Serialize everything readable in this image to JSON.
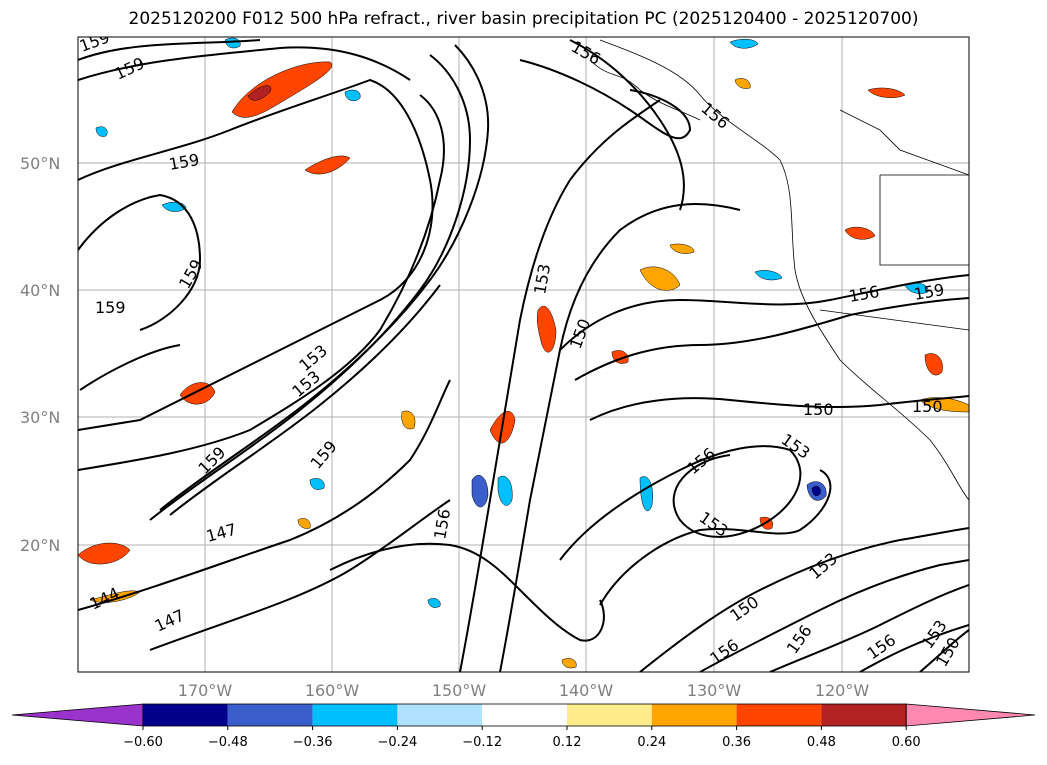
{
  "title": "2025120200 F012 500 hPa refract., river basin precipitation PC (2025120400 - 2025120700)",
  "map": {
    "lat_labels": [
      "50°N",
      "40°N",
      "30°N",
      "20°N"
    ],
    "lon_labels": [
      "170°W",
      "160°W",
      "150°W",
      "140°W",
      "130°W",
      "120°W"
    ],
    "contour_labels": [
      "159",
      "159",
      "159",
      "159",
      "159",
      "153",
      "153",
      "159",
      "159",
      "147",
      "147",
      "144",
      "156",
      "153",
      "150",
      "156",
      "156",
      "156",
      "159",
      "150",
      "150",
      "153",
      "156",
      "153",
      "153",
      "150",
      "156",
      "156",
      "156",
      "153",
      "150"
    ]
  },
  "colorbar": {
    "tick_labels": [
      "−0.60",
      "−0.48",
      "−0.36",
      "−0.24",
      "−0.12",
      "0.12",
      "0.24",
      "0.36",
      "0.48",
      "0.60"
    ],
    "colors": [
      "#9933cc",
      "#00008b",
      "#3a5fcd",
      "#00bfff",
      "#b0e2ff",
      "#ffffff",
      "#ffec8b",
      "#ffa500",
      "#ff4500",
      "#b22222",
      "#ff88b0"
    ]
  }
}
